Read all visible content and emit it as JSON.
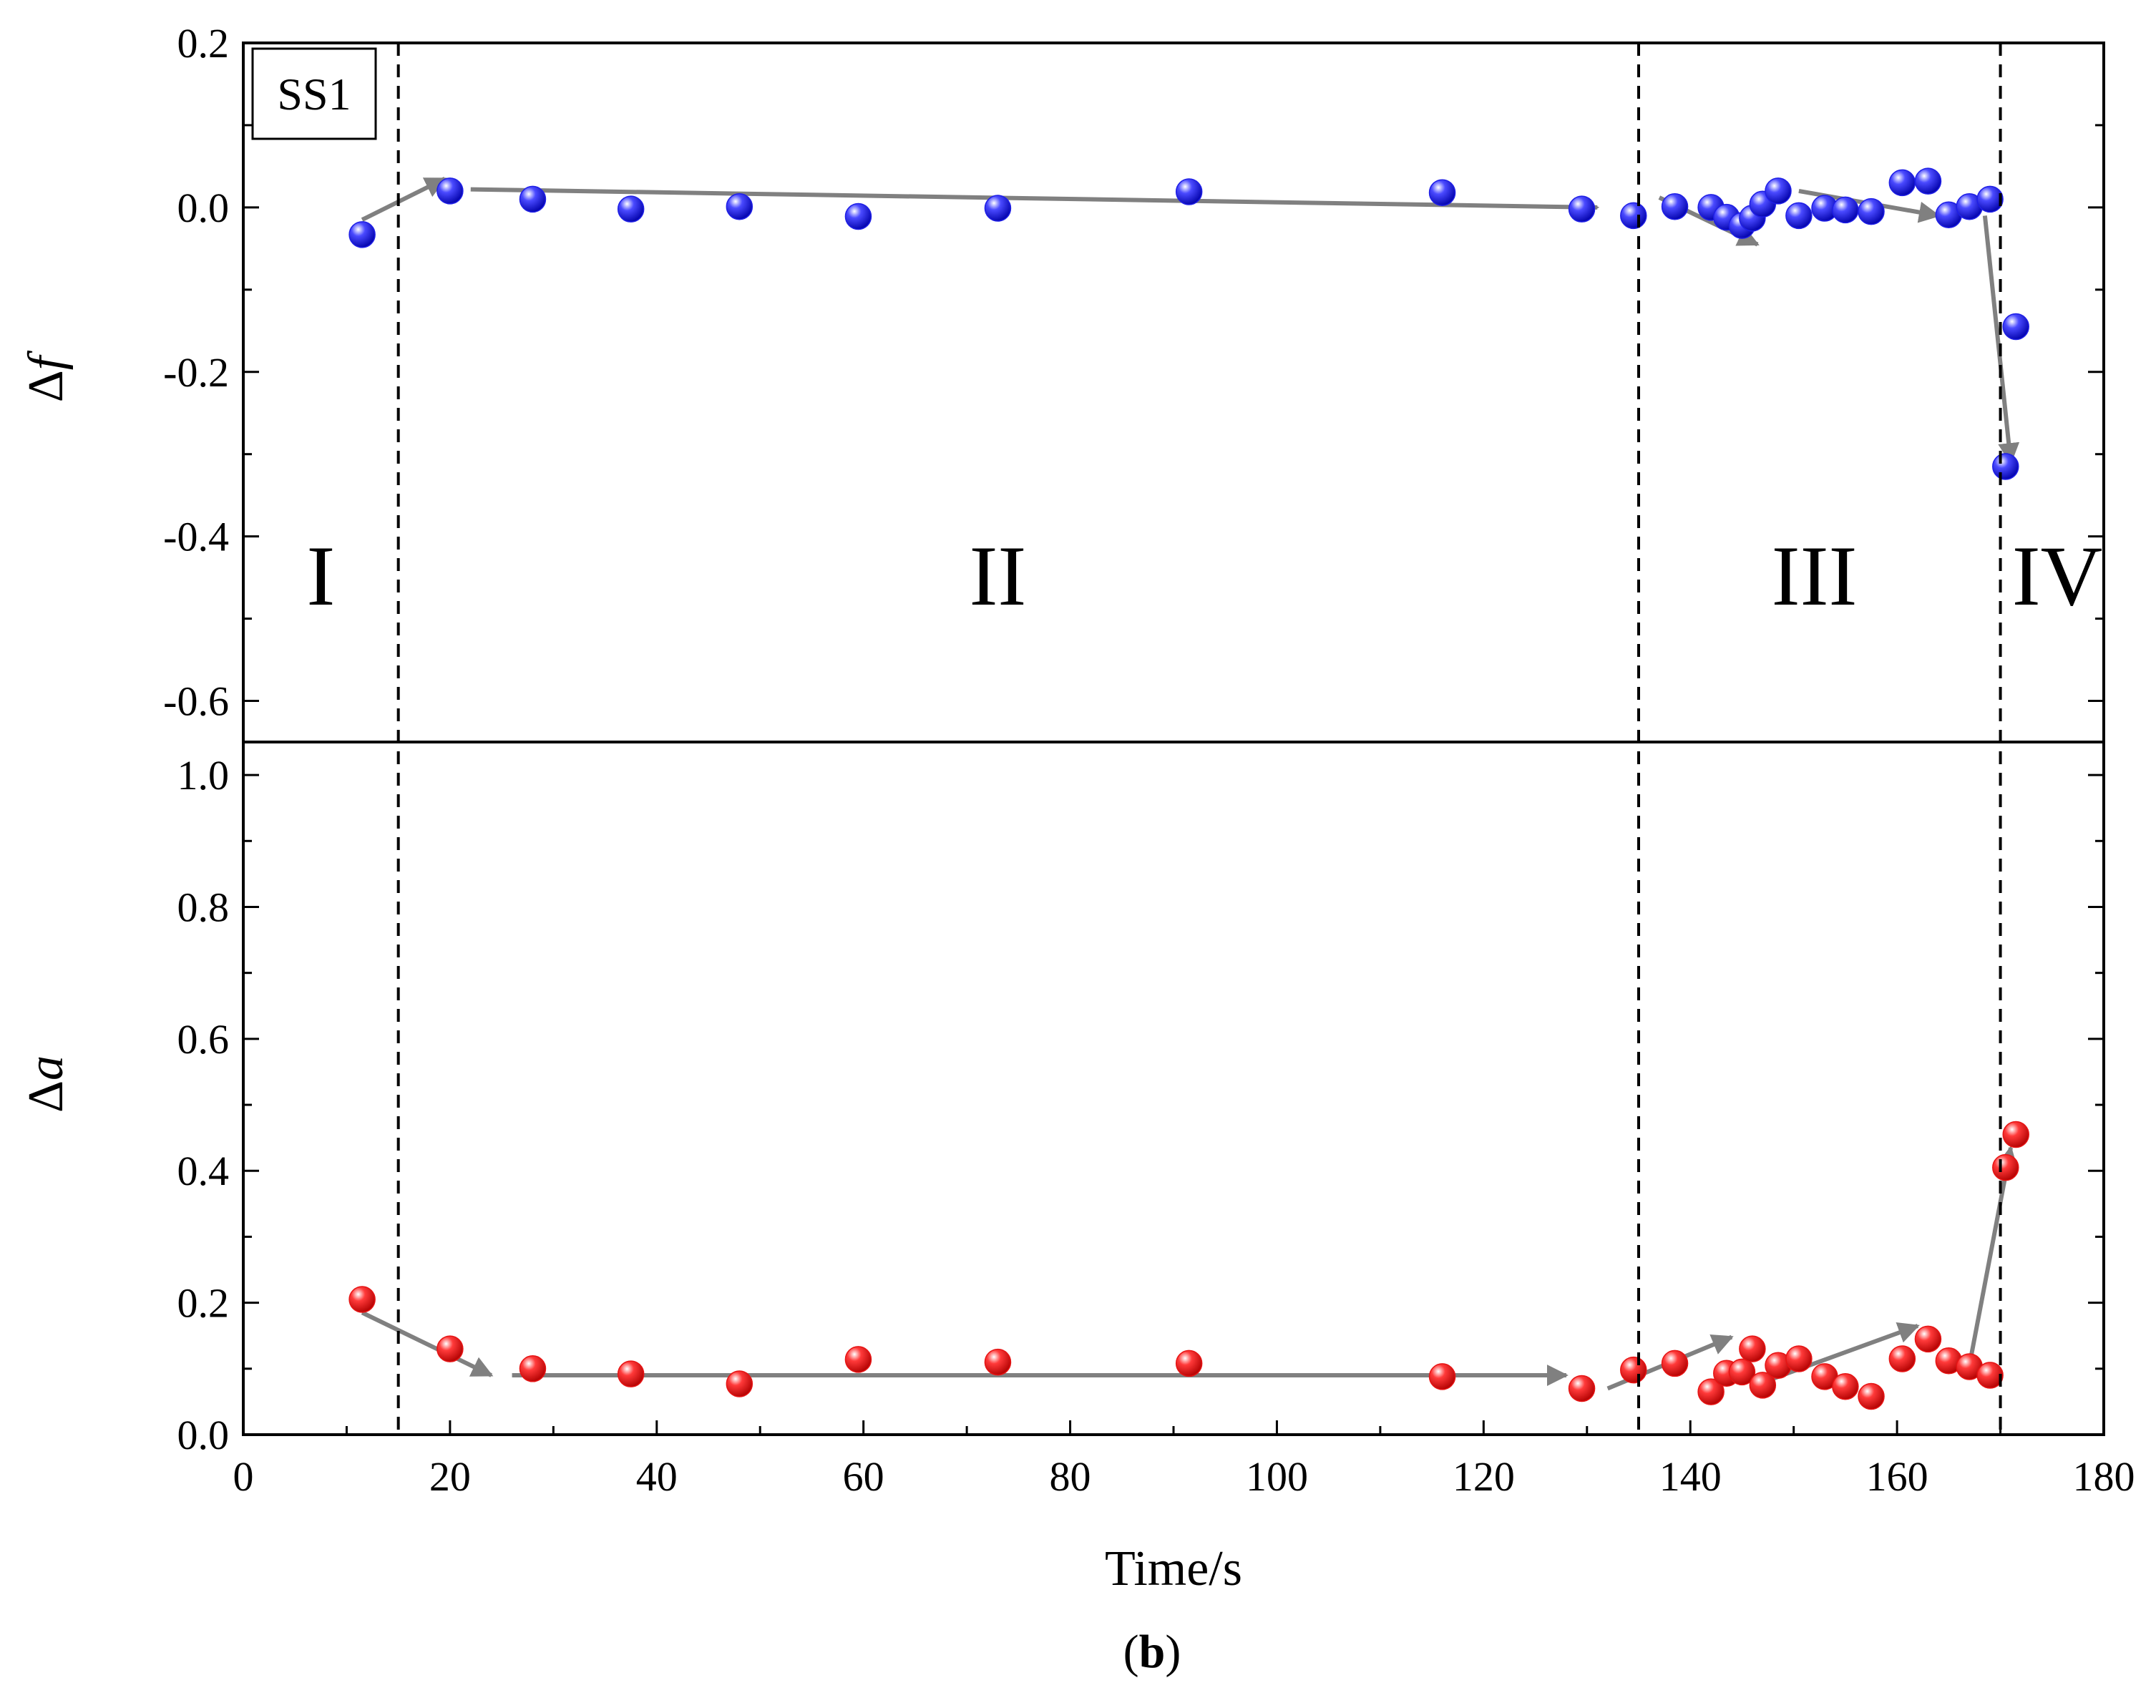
{
  "chart_data": {
    "type": "scatter",
    "caption": "(b)",
    "sample_tag": "SS1",
    "xlabel": "Time/s",
    "xlim": [
      0,
      180
    ],
    "x_ticks": [
      "0",
      "20",
      "40",
      "60",
      "80",
      "100",
      "120",
      "140",
      "160",
      "180"
    ],
    "stage_boundaries_x": [
      15,
      135,
      170
    ],
    "stage_labels": [
      {
        "text": "I",
        "x": 7.5
      },
      {
        "text": "II",
        "x": 73
      },
      {
        "text": "III",
        "x": 152
      },
      {
        "text": "IV",
        "x": 175.5
      }
    ],
    "panels": [
      {
        "name": "delta-f",
        "ylabel": "Δf",
        "ylim": [
          -0.65,
          0.2
        ],
        "y_ticks": [
          "0.2",
          "0.0",
          "-0.2",
          "-0.4",
          "-0.6"
        ],
        "marker_color": "#1f1fe6",
        "x": [
          11.5,
          20,
          28,
          37.5,
          48,
          59.5,
          73,
          91.5,
          116,
          129.5,
          134.5,
          138.5,
          142,
          143.5,
          145,
          146,
          147,
          148.5,
          150.5,
          153,
          155,
          157.5,
          160.5,
          163,
          165,
          167,
          169,
          170.5,
          171.5
        ],
        "values": [
          -0.033,
          0.02,
          0.01,
          -0.002,
          0.001,
          -0.011,
          -0.001,
          0.019,
          0.018,
          -0.002,
          -0.01,
          0.001,
          0.0,
          -0.012,
          -0.022,
          -0.013,
          0.004,
          0.02,
          -0.01,
          -0.001,
          -0.003,
          -0.005,
          0.03,
          0.032,
          -0.009,
          0.001,
          0.01,
          -0.315,
          -0.145
        ],
        "trend_arrows": [
          {
            "from": [
              11.5,
              -0.015
            ],
            "to": [
              19.5,
              0.035
            ]
          },
          {
            "from": [
              22,
              0.022
            ],
            "to": [
              131,
              0.0
            ]
          },
          {
            "from": [
              137,
              0.012
            ],
            "to": [
              146.5,
              -0.045
            ]
          },
          {
            "from": [
              150.5,
              0.02
            ],
            "to": [
              164,
              -0.01
            ]
          },
          {
            "from": [
              168.5,
              -0.01
            ],
            "to": [
              171,
              -0.31
            ]
          }
        ]
      },
      {
        "name": "delta-a",
        "ylabel": "Δa",
        "ylim": [
          0.0,
          1.05
        ],
        "y_ticks": [
          "0.0",
          "0.2",
          "0.4",
          "0.6",
          "0.8",
          "1.0"
        ],
        "marker_color": "#e61414",
        "x": [
          11.5,
          20,
          28,
          37.5,
          48,
          59.5,
          73,
          91.5,
          116,
          129.5,
          134.5,
          138.5,
          142,
          143.5,
          145,
          146,
          147,
          148.5,
          150.5,
          153,
          155,
          157.5,
          160.5,
          163,
          165,
          167,
          169,
          170.5,
          171.5
        ],
        "values": [
          0.205,
          0.13,
          0.1,
          0.092,
          0.077,
          0.114,
          0.11,
          0.108,
          0.088,
          0.07,
          0.098,
          0.108,
          0.065,
          0.093,
          0.095,
          0.13,
          0.075,
          0.105,
          0.115,
          0.088,
          0.073,
          0.058,
          0.115,
          0.145,
          0.112,
          0.103,
          0.09,
          0.405,
          0.455
        ],
        "trend_arrows": [
          {
            "from": [
              11.5,
              0.185
            ],
            "to": [
              24,
              0.09
            ]
          },
          {
            "from": [
              26,
              0.09
            ],
            "to": [
              128,
              0.09
            ]
          },
          {
            "from": [
              132,
              0.07
            ],
            "to": [
              144,
              0.148
            ]
          },
          {
            "from": [
              148,
              0.085
            ],
            "to": [
              162,
              0.165
            ]
          },
          {
            "from": [
              167,
              0.105
            ],
            "to": [
              171,
              0.435
            ]
          }
        ]
      }
    ]
  }
}
